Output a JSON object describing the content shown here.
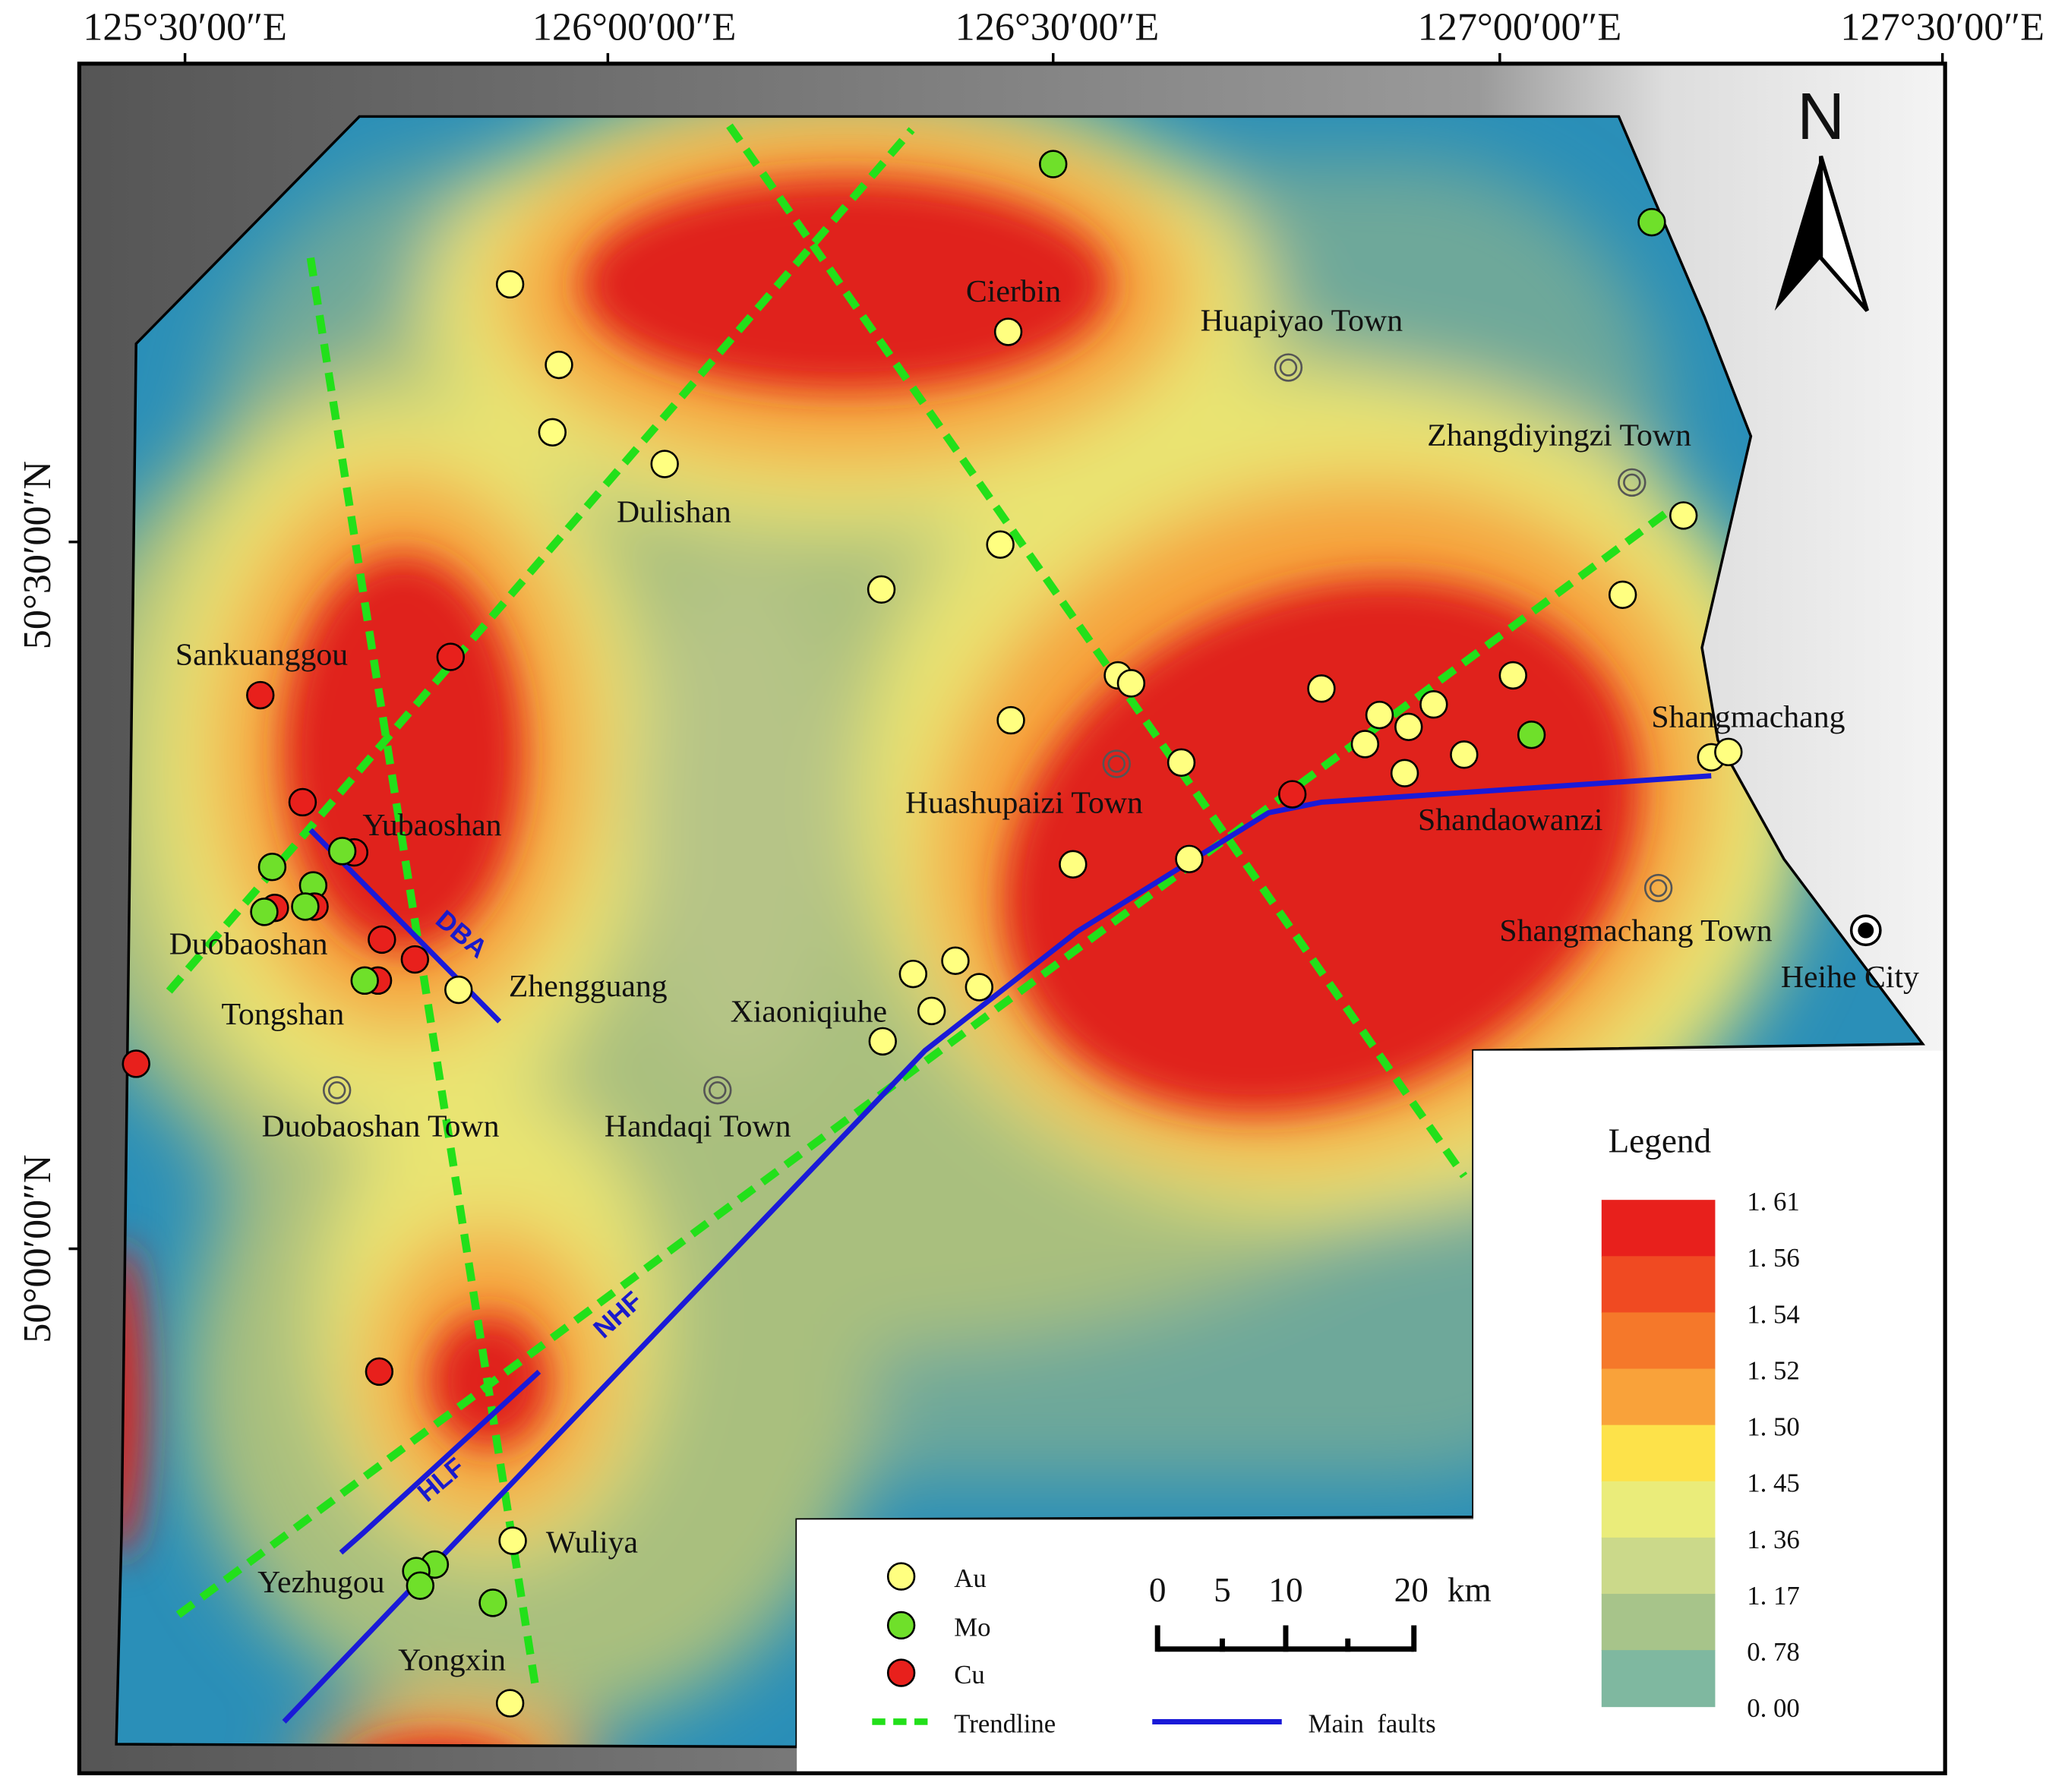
{
  "axes": {
    "longitude": [
      "125°30′00″E",
      "126°00′00″E",
      "126°30′00″E",
      "127°00′00″E",
      "127°30′00″E"
    ],
    "latitude": [
      "50°30′00″N",
      "50°00′00″N"
    ]
  },
  "north": "N",
  "places": [
    "Cierbin",
    "Huapiyao Town",
    "Zhangdiyingzi Town",
    "Dulishan",
    "Sankuanggou",
    "Yubaoshan",
    "Duobaoshan",
    "Tongshan",
    "Zhengguang",
    "Xiaoniqiuhe",
    "Huashupaizi Town",
    "Shandaowanzi",
    "Shangmachang",
    "Shangmachang Town",
    "Heihe City",
    "Duobaoshan Town",
    "Handaqi Town",
    "Wuliya",
    "Yezhugou",
    "Yongxin"
  ],
  "faults": [
    "DBA",
    "NHF",
    "HLF"
  ],
  "legend": {
    "title": "Legend",
    "classes": [
      "1. 61",
      "1. 56",
      "1. 54",
      "1. 52",
      "1. 50",
      "1. 45",
      "1. 36",
      "1. 17",
      "0. 78",
      "0. 00"
    ]
  },
  "symbols": [
    "Au",
    "Mo",
    "Cu",
    "Trendline",
    "Main  faults"
  ],
  "scale": {
    "ticks": [
      "0",
      "5",
      "10",
      "20"
    ],
    "unit": "km"
  }
}
